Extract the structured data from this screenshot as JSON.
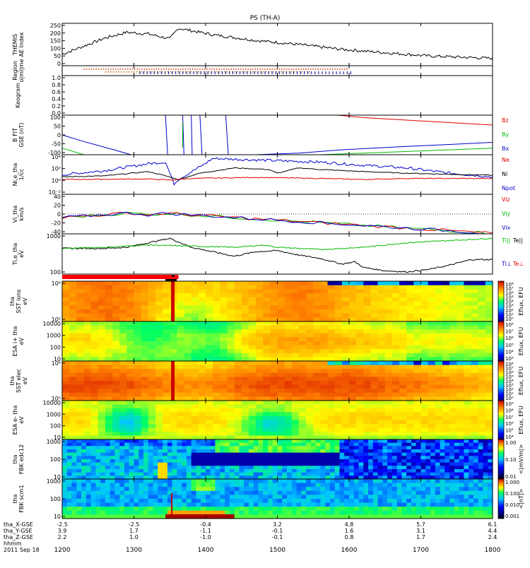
{
  "chart_data": {
    "type": "line",
    "title": "PS (TH-A)",
    "date_label": "2011 Sep 18",
    "x": {
      "tick_labels": [
        "1200",
        "1300",
        "1400",
        "1500",
        "1600",
        "1700",
        "1800"
      ],
      "unit_label": "hhmm"
    },
    "ephemeris": [
      {
        "label": "tha_X-GSE",
        "values": [
          "-2.5",
          "-2.5",
          "-0.4",
          "3.2",
          "4.8",
          "5.7",
          "6.1"
        ]
      },
      {
        "label": "tha_Y-GSE",
        "values": [
          "3.9",
          "1.7",
          "-1.1",
          "-0.1",
          "1.6",
          "3.1",
          "4.4"
        ]
      },
      {
        "label": "tha_Z-GSE",
        "values": [
          "2.2",
          "1.0",
          "-1.0",
          "-0.1",
          "0.8",
          "1.7",
          "2.4"
        ]
      }
    ],
    "panels": [
      {
        "id": "ae",
        "ylabel": [
          "THEMIS",
          "AE Index"
        ],
        "yticks": [
          "250",
          "200",
          "150",
          "100",
          "50",
          "0"
        ]
      },
      {
        "id": "region",
        "ylabel": [
          "Region",
          "o|ml|me"
        ],
        "yticks": []
      },
      {
        "id": "keogram",
        "ylabel": [
          "Keogram"
        ],
        "yticks": [
          "1.0",
          "0.8",
          "0.6",
          "0.4",
          "0.2",
          "0.0"
        ]
      },
      {
        "id": "bfield",
        "ylabel": [
          "B FIT",
          "GSE (nT)"
        ],
        "yticks": [
          "100",
          "50",
          "0",
          "-50",
          "-100"
        ],
        "legend": [
          {
            "name": "Bz",
            "color": "#dd0000"
          },
          {
            "name": "By",
            "color": "#00bb00"
          },
          {
            "name": "Bx",
            "color": "#0000cc"
          }
        ]
      },
      {
        "id": "density",
        "ylabel": [
          "Ni,e_tha",
          "1/cc"
        ],
        "yticks": [
          "10⁴",
          "10²",
          "10⁰",
          "10⁻²"
        ],
        "legend": [
          {
            "name": "Ne",
            "color": "#dd0000"
          },
          {
            "name": "Ni",
            "color": "#000000"
          },
          {
            "name": "Npot",
            "color": "#0000cc"
          }
        ]
      },
      {
        "id": "velocity",
        "ylabel": [
          "Vi_tha",
          "km/s"
        ],
        "yticks": [
          "40",
          "20",
          "0",
          "-20",
          "-40"
        ],
        "legend": [
          {
            "name": "Viz",
            "color": "#dd0000"
          },
          {
            "name": "Viy",
            "color": "#00bb00"
          },
          {
            "name": "Vix",
            "color": "#0000cc"
          }
        ]
      },
      {
        "id": "temp",
        "ylabel": [
          "Ti,e_tha",
          "eV"
        ],
        "yticks": [
          "1000",
          "100"
        ],
        "legend": [
          {
            "name": "Ti||",
            "color": "#00bb00"
          },
          {
            "name": "Te||",
            "color": "#000000"
          },
          {
            "name": "Ti⊥",
            "color": "#0000cc"
          },
          {
            "name": "Te⊥",
            "color": "#dd0000"
          }
        ]
      },
      {
        "id": "sst_ions",
        "ylabel": [
          "tha",
          "SST ions",
          "eV"
        ],
        "yticks": [
          "10⁶",
          "10⁵"
        ],
        "cbar_ticks": [
          "10⁸",
          "10⁷",
          "10⁶",
          "10⁵",
          "10⁴",
          "10³",
          "10²",
          "10¹",
          "10⁰"
        ],
        "cbar_label": "Eflux, EFU"
      },
      {
        "id": "esa_ions",
        "ylabel": [
          "ESA i+ tha",
          "eV"
        ],
        "yticks": [
          "10000",
          "1000",
          "100",
          "10"
        ],
        "cbar_ticks": [
          "10⁸",
          "10⁷",
          "10⁶",
          "10⁵",
          "10⁴",
          "10³"
        ],
        "cbar_label": "Eflux, EFU"
      },
      {
        "id": "sst_elec",
        "ylabel": [
          "tha",
          "SST elec",
          "eV"
        ],
        "yticks": [
          "10⁶",
          "10⁵"
        ],
        "cbar_ticks": [
          "10⁸",
          "10⁷",
          "10⁶",
          "10⁵",
          "10⁴",
          "10³",
          "10²",
          "10¹",
          "10⁰"
        ],
        "cbar_label": "Eflux, EFU"
      },
      {
        "id": "esa_elec",
        "ylabel": [
          "ESA e- tha",
          "eV"
        ],
        "yticks": [
          "10000",
          "1000",
          "100",
          "10"
        ],
        "cbar_ticks": [
          "10⁹",
          "10⁸",
          "10⁷",
          "10⁶",
          "10⁵",
          "10⁴"
        ],
        "cbar_label": "Eflux, EFU"
      },
      {
        "id": "fbk_e",
        "ylabel": [
          "tha",
          "FBK edc12"
        ],
        "yticks": [
          "1000",
          "100",
          "10"
        ],
        "cbar_ticks": [
          "1.00",
          "0.10",
          "0.01"
        ],
        "cbar_label": "<|mV/m|>"
      },
      {
        "id": "fbk_b",
        "ylabel": [
          "tha",
          "FBK scm1"
        ],
        "yticks": [
          "1000",
          "100",
          "10"
        ],
        "cbar_ticks": [
          "1.000",
          "0.100",
          "0.010",
          "0.001"
        ],
        "cbar_label": "<|nT|>"
      }
    ],
    "colors": {
      "red": "#dd0000",
      "green": "#00bb00",
      "blue": "#0000cc",
      "orange": "#ff7a00"
    }
  }
}
